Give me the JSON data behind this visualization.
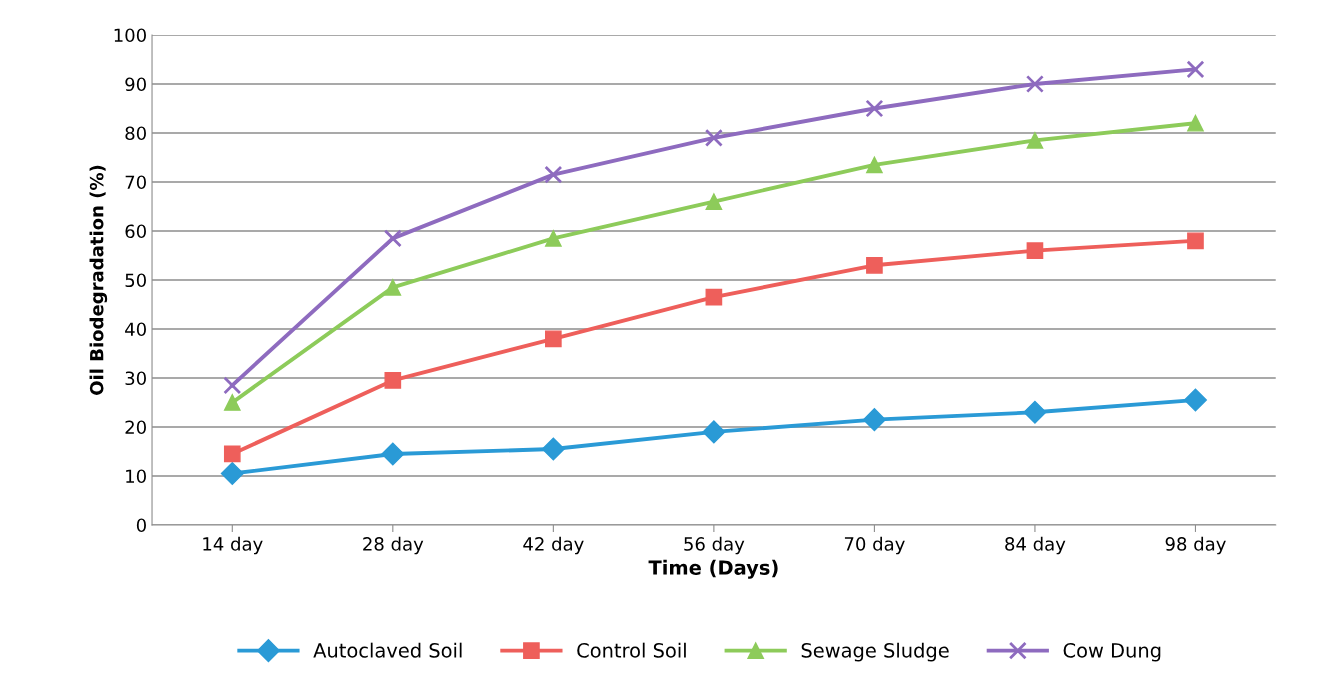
{
  "chart_data": {
    "type": "line",
    "xlabel": "Time (Days)",
    "ylabel": "Oil Biodegradation (%)",
    "categories": [
      "14 day",
      "28 day",
      "42 day",
      "56 day",
      "70 day",
      "84 day",
      "98 day"
    ],
    "series": [
      {
        "name": "Autoclaved Soil",
        "color": "#2a9ad6",
        "marker": "diamond",
        "values": [
          10.5,
          14.5,
          15.5,
          19,
          21.5,
          23,
          25.5
        ]
      },
      {
        "name": "Control Soil",
        "color": "#ee5f5b",
        "marker": "square",
        "values": [
          14.5,
          29.5,
          38,
          46.5,
          53,
          56,
          58
        ]
      },
      {
        "name": "Sewage Sludge",
        "color": "#8dcb5a",
        "marker": "triangle",
        "values": [
          25,
          48.5,
          58.5,
          66,
          73.5,
          78.5,
          82
        ]
      },
      {
        "name": "Cow Dung",
        "color": "#8e6bbf",
        "marker": "cross",
        "values": [
          28.5,
          58.5,
          71.5,
          79,
          85,
          90,
          93
        ]
      }
    ],
    "ylim": [
      0,
      100
    ],
    "yticks": [
      0,
      10,
      20,
      30,
      40,
      50,
      60,
      70,
      80,
      90,
      100
    ],
    "grid": "y",
    "legend": "bottom",
    "line_style": "solid"
  }
}
